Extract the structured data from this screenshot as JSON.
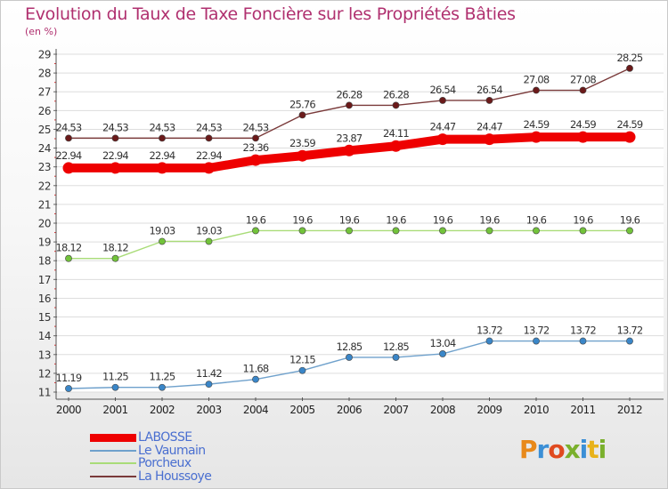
{
  "title": "Evolution du Taux de Taxe Foncière sur les Propriétés Bâties",
  "unit_label": "(en %)",
  "logo": {
    "text": "Proxiti",
    "letter_colors": [
      "#e8891a",
      "#3b8fd6",
      "#e04a1f",
      "#7ab02c",
      "#3b8fd6",
      "#e8b21a",
      "#7ab02c"
    ]
  },
  "chart_data": {
    "type": "line",
    "title": "Evolution du Taux de Taxe Foncière sur les Propriétés Bâties",
    "ylabel": "(en %)",
    "xlabel": "",
    "ylim": [
      11,
      29
    ],
    "yticks": [
      11,
      12,
      13,
      14,
      15,
      16,
      17,
      18,
      19,
      20,
      21,
      22,
      23,
      24,
      25,
      26,
      27,
      28,
      29
    ],
    "grid": true,
    "legend": "bottom-left",
    "x": [
      "2000",
      "2001",
      "2002",
      "2003",
      "2004",
      "2005",
      "2006",
      "2007",
      "2008",
      "2009",
      "2010",
      "2011",
      "2012"
    ],
    "series": [
      {
        "name": "LABOSSE",
        "color": "#ee0000",
        "emphasis": true,
        "values": [
          22.94,
          22.94,
          22.94,
          22.94,
          23.36,
          23.59,
          23.87,
          24.11,
          24.47,
          24.47,
          24.59,
          24.59,
          24.59
        ]
      },
      {
        "name": "Le Vaumain",
        "color": "#6fa1cc",
        "dot_color": "#3a86c8",
        "values": [
          11.19,
          11.25,
          11.25,
          11.42,
          11.68,
          12.15,
          12.85,
          12.85,
          13.04,
          13.72,
          13.72,
          13.72,
          13.72
        ]
      },
      {
        "name": "Porcheux",
        "color": "#a9dc78",
        "dot_color": "#72c33a",
        "values": [
          18.12,
          18.12,
          19.03,
          19.03,
          19.6,
          19.6,
          19.6,
          19.6,
          19.6,
          19.6,
          19.6,
          19.6,
          19.6
        ]
      },
      {
        "name": "La Houssoye",
        "color": "#7a3a3a",
        "dot_color": "#6b1a1a",
        "values": [
          24.53,
          24.53,
          24.53,
          24.53,
          24.53,
          25.76,
          26.28,
          26.28,
          26.54,
          26.54,
          27.08,
          27.08,
          28.25
        ]
      }
    ]
  }
}
